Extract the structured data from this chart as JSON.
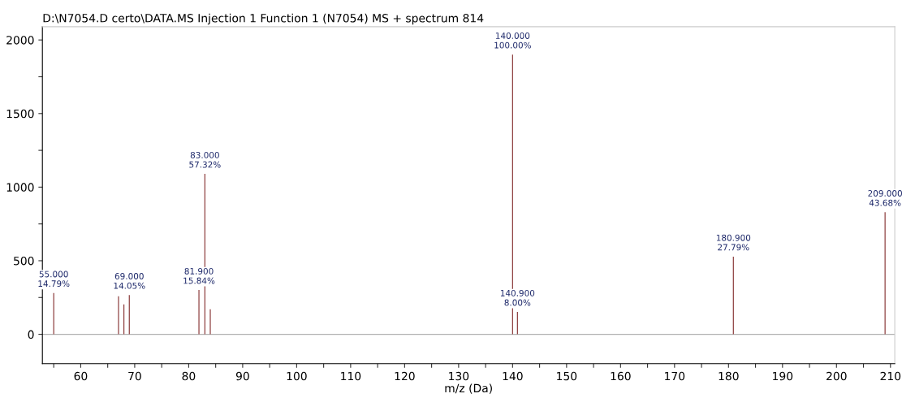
{
  "chart_data": {
    "type": "bar",
    "title": "D:\\N7054.D certo\\DATA.MS Injection 1 Function 1 (N7054) MS + spectrum 814",
    "xlabel": "m/z (Da)",
    "x": [
      55,
      67,
      68,
      69,
      81.9,
      83,
      84,
      140,
      140.9,
      180.9,
      209
    ],
    "values": [
      281,
      258,
      203,
      267,
      301,
      1090,
      170,
      1901,
      152,
      528,
      830
    ],
    "color": "#8b3a3a",
    "xlim": [
      52.9,
      210.8
    ],
    "xticks": [
      {
        "value": 55,
        "label": null
      },
      60,
      {
        "value": 65,
        "label": null
      },
      70,
      {
        "value": 75,
        "label": null
      },
      80,
      {
        "value": 85,
        "label": null
      },
      90,
      {
        "value": 95,
        "label": null
      },
      100,
      {
        "value": 105,
        "label": null
      },
      110,
      {
        "value": 115,
        "label": null
      },
      120,
      {
        "value": 125,
        "label": null
      },
      130,
      {
        "value": 135,
        "label": null
      },
      140,
      {
        "value": 145,
        "label": null
      },
      150,
      {
        "value": 155,
        "label": null
      },
      160,
      {
        "value": 165,
        "label": null
      },
      170,
      {
        "value": 175,
        "label": null
      },
      180,
      {
        "value": 185,
        "label": null
      },
      190,
      {
        "value": 195,
        "label": null
      },
      200,
      {
        "value": 205,
        "label": null
      },
      210
    ],
    "ylim": [
      -200,
      2090
    ],
    "yticks": [
      0,
      {
        "value": 250,
        "label": null
      },
      500,
      {
        "value": 750,
        "label": null
      },
      1000,
      {
        "value": 1250,
        "label": null
      },
      1500,
      {
        "value": 1750,
        "label": null
      },
      2000
    ],
    "ref_lines": [
      {
        "axis": "y",
        "value": 0,
        "color": "#b0b0b0"
      }
    ],
    "grid": false,
    "annotations": [
      {
        "text": "55.000\n14.79%",
        "x": 55,
        "y": 281
      },
      {
        "text": "69.000\n14.05%",
        "x": 69,
        "y": 267
      },
      {
        "text": "81.900\n15.84%",
        "x": 81.9,
        "y": 301
      },
      {
        "text": "83.000\n57.32%",
        "x": 83,
        "y": 1090
      },
      {
        "text": "140.000\n100.00%",
        "x": 140,
        "y": 1901
      },
      {
        "text": "140.900\n8.00%",
        "x": 140.9,
        "y": 152
      },
      {
        "text": "180.900\n27.79%",
        "x": 180.9,
        "y": 528
      },
      {
        "text": "209.000\n43.68%",
        "x": 209,
        "y": 830
      }
    ]
  }
}
